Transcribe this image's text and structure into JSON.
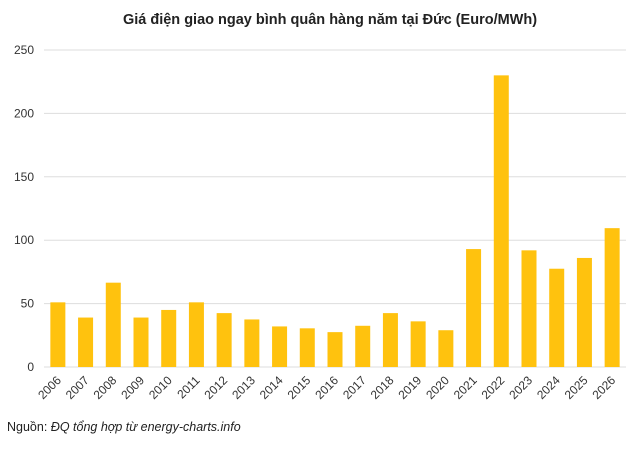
{
  "chart_data": {
    "type": "bar",
    "title": "Giá điện giao ngay bình quân hàng năm tại Đức (Euro/MWh)",
    "xlabel": "",
    "ylabel": "",
    "categories": [
      "2006",
      "2007",
      "2008",
      "2009",
      "2010",
      "2011",
      "2012",
      "2013",
      "2014",
      "2015",
      "2016",
      "2017",
      "2018",
      "2019",
      "2020",
      "2021",
      "2022",
      "2023",
      "2024",
      "2025",
      "2026"
    ],
    "values": [
      51,
      39,
      66.5,
      39,
      45,
      51,
      42.5,
      37.5,
      32,
      30.5,
      27.5,
      32.5,
      42.5,
      36,
      29,
      93,
      230,
      92,
      77.5,
      86,
      109.5
    ],
    "ylim": [
      0,
      250
    ],
    "yticks": [
      0,
      50,
      100,
      150,
      200,
      250
    ],
    "grid": true,
    "bar_color": "#FFC20E",
    "grid_color": "#DDDDDD"
  },
  "source": {
    "label": "Nguồn:",
    "text": "ĐQ tổng hợp từ energy-charts.info"
  }
}
